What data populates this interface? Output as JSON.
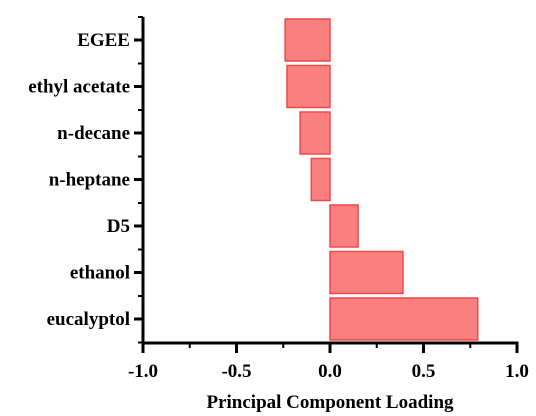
{
  "chart_data": {
    "type": "bar",
    "orientation": "horizontal",
    "title": "",
    "xlabel": "Principal Component Loading",
    "ylabel": "",
    "categories": [
      "EGEE",
      "ethyl acetate",
      "n-decane",
      "n-heptane",
      "D5",
      "ethanol",
      "eucalyptol"
    ],
    "values": [
      -0.24,
      -0.23,
      -0.16,
      -0.1,
      0.15,
      0.39,
      0.79
    ],
    "xlim": [
      -1.0,
      1.0
    ],
    "xticks": [
      "-1.0",
      "-0.5",
      "0.0",
      "0.5",
      "1.0"
    ],
    "xtick_values": [
      -1.0,
      -0.5,
      0.0,
      0.5,
      1.0
    ],
    "grid": false,
    "legend": "none",
    "bar_fill": "#fa8080",
    "bar_stroke": "#f04848"
  }
}
